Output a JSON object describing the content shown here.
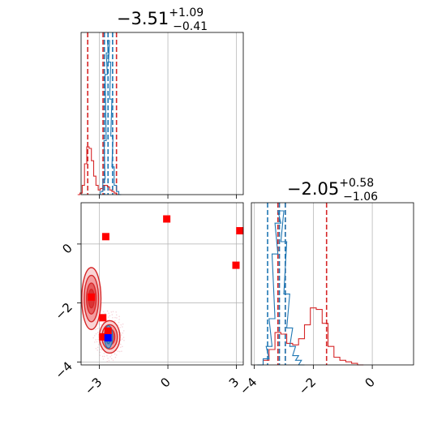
{
  "chart_data": {
    "type": "corner",
    "grid": true,
    "colors": {
      "series_a": "#1f77b4",
      "series_b": "#d62728",
      "markers": "#ff0000",
      "true_value": "#0000ff",
      "grid": "#b0b0b0"
    },
    "params": [
      {
        "title": {
          "median": "−3.51",
          "plus": "+1.09",
          "minus": "−0.41"
        },
        "range": [
          -3.8,
          3.3
        ],
        "ticks": [
          -3,
          0,
          3
        ],
        "tick_labels": [
          "−3",
          "0",
          "3"
        ],
        "quantile_lines": {
          "series_a": [
            -2.78,
            -2.62,
            -2.42
          ],
          "series_b": [
            -3.51,
            -2.84,
            -2.25
          ]
        },
        "histograms": {
          "series_a": {
            "x": [
              -3.0,
              -2.9,
              -2.8,
              -2.75,
              -2.7,
              -2.65,
              -2.6,
              -2.55,
              -2.5,
              -2.45,
              -2.4,
              -2.3,
              -2.2,
              -2.1
            ],
            "y": [
              0.0,
              0.02,
              0.1,
              0.35,
              0.78,
              0.92,
              1.0,
              0.86,
              0.62,
              0.38,
              0.18,
              0.06,
              0.02,
              0.0
            ]
          },
          "series_b": {
            "x": [
              -3.9,
              -3.8,
              -3.7,
              -3.6,
              -3.5,
              -3.4,
              -3.3,
              -3.2,
              -3.1,
              -3.0,
              -2.9,
              -2.8,
              -2.7,
              -2.6,
              -2.5,
              -2.4,
              -2.3,
              -2.2,
              -2.1
            ],
            "y": [
              0.0,
              0.01,
              0.06,
              0.2,
              0.31,
              0.3,
              0.22,
              0.12,
              0.06,
              0.03,
              0.04,
              0.06,
              0.06,
              0.05,
              0.03,
              0.02,
              0.01,
              0.0,
              0.0
            ]
          }
        }
      },
      {
        "title": {
          "median": "−2.05",
          "plus": "+0.58",
          "minus": "−1.06"
        },
        "range": [
          -4.1,
          1.4
        ],
        "ticks": [
          -4,
          -2,
          0
        ],
        "tick_labels": [
          "−4",
          "−2",
          "0"
        ],
        "quantile_lines": {
          "series_a": [
            -3.55,
            -3.15,
            -2.95
          ],
          "series_b": [
            -3.2,
            -2.95,
            -1.55
          ]
        },
        "histograms": {
          "series_a": {
            "x": [
              -3.8,
              -3.6,
              -3.5,
              -3.4,
              -3.3,
              -3.2,
              -3.1,
              -3.0,
              -2.9,
              -2.8,
              -2.7,
              -2.6,
              -2.5,
              -2.4
            ],
            "y": [
              0.0,
              0.04,
              0.12,
              0.3,
              0.72,
              0.92,
              1.0,
              0.8,
              0.46,
              0.24,
              0.12,
              0.06,
              0.03,
              0.0
            ]
          },
          "series_b": {
            "x": [
              -3.8,
              -3.6,
              -3.4,
              -3.2,
              -3.0,
              -2.8,
              -2.6,
              -2.4,
              -2.2,
              -2.0,
              -1.8,
              -1.6,
              -1.4,
              -1.2,
              -1.0,
              -0.8,
              -0.6,
              -0.4
            ],
            "y": [
              0.0,
              0.03,
              0.1,
              0.21,
              0.2,
              0.14,
              0.13,
              0.17,
              0.26,
              0.37,
              0.36,
              0.27,
              0.12,
              0.05,
              0.03,
              0.02,
              0.01,
              0.0
            ]
          }
        }
      }
    ],
    "scatter_2d": {
      "y_ticks": [
        0,
        -2,
        -4
      ],
      "y_tick_labels": [
        "0",
        "−2",
        "−4"
      ],
      "y_range": [
        -4.1,
        1.4
      ],
      "markers": [
        {
          "x": -2.72,
          "y": 0.25
        },
        {
          "x": -0.05,
          "y": 0.85
        },
        {
          "x": 3.15,
          "y": 0.45
        },
        {
          "x": 2.98,
          "y": -0.72
        },
        {
          "x": -3.35,
          "y": -1.8
        },
        {
          "x": -2.85,
          "y": -2.5
        },
        {
          "x": -2.83,
          "y": -3.15
        },
        {
          "x": -2.62,
          "y": -2.95
        }
      ],
      "true_value": {
        "x": -2.62,
        "y": -3.18
      },
      "contours": {
        "series_b": [
          {
            "cx": -3.35,
            "cy": -1.85,
            "rx": 0.42,
            "ry": 1.05
          },
          {
            "cx": -2.55,
            "cy": -3.15,
            "rx": 0.45,
            "ry": 0.55
          }
        ],
        "series_a": [
          {
            "cx": -2.6,
            "cy": -3.15,
            "rx": 0.18,
            "ry": 0.38
          }
        ]
      }
    }
  }
}
